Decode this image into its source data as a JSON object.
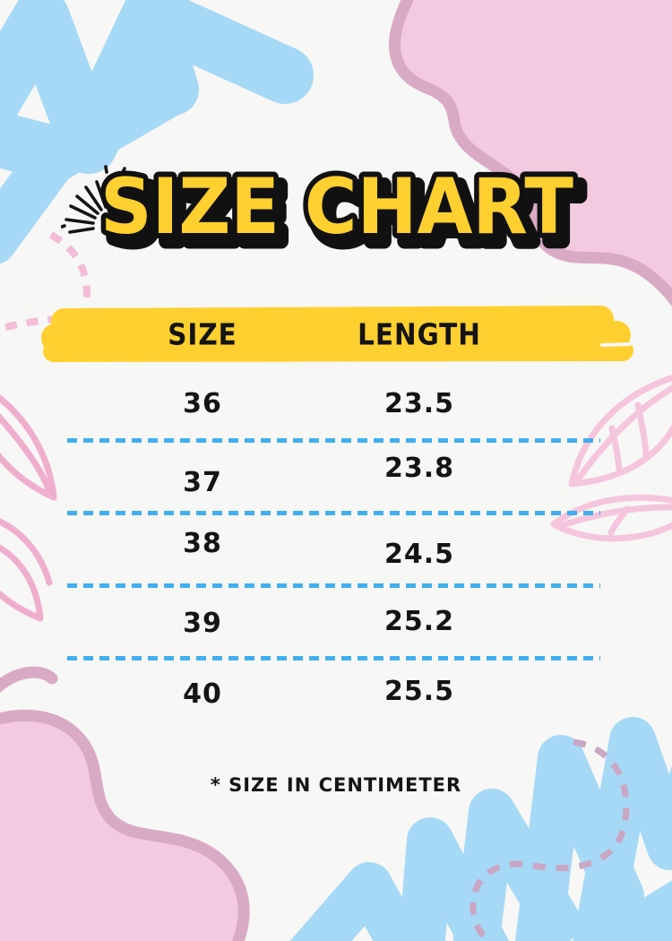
{
  "page": {
    "title": "SIZE CHART",
    "footnote": "* SIZE IN CENTIMETER"
  },
  "table": {
    "headers": [
      "SIZE",
      "LENGTH"
    ],
    "rows": [
      {
        "size": "36",
        "length": "23.5"
      },
      {
        "size": "37",
        "length": "23.8"
      },
      {
        "size": "38",
        "length": "24.5"
      },
      {
        "size": "39",
        "length": "25.2"
      },
      {
        "size": "40",
        "length": "25.5"
      }
    ]
  },
  "chart_data": {
    "type": "table",
    "columns": [
      "SIZE",
      "LENGTH"
    ],
    "rows": [
      [
        36,
        23.5
      ],
      [
        37,
        23.8
      ],
      [
        38,
        24.5
      ],
      [
        39,
        25.2
      ],
      [
        40,
        25.5
      ]
    ],
    "title": "SIZE CHART",
    "note": "* SIZE IN CENTIMETER"
  },
  "colors": {
    "bg": "#F7F7F5",
    "ink": "#141414",
    "yellow": "#FFD02F",
    "blue": "#A5D9F6",
    "blue_dash": "#41AFEF",
    "pink_fill": "#F3CADF",
    "pink_outline": "#D9AAC6",
    "pink_dash": "#F4BCD7",
    "mauve_dash": "#CBA6C4",
    "leaf_left": "#F0AECF",
    "leaf_right": "#F5C5DD"
  }
}
